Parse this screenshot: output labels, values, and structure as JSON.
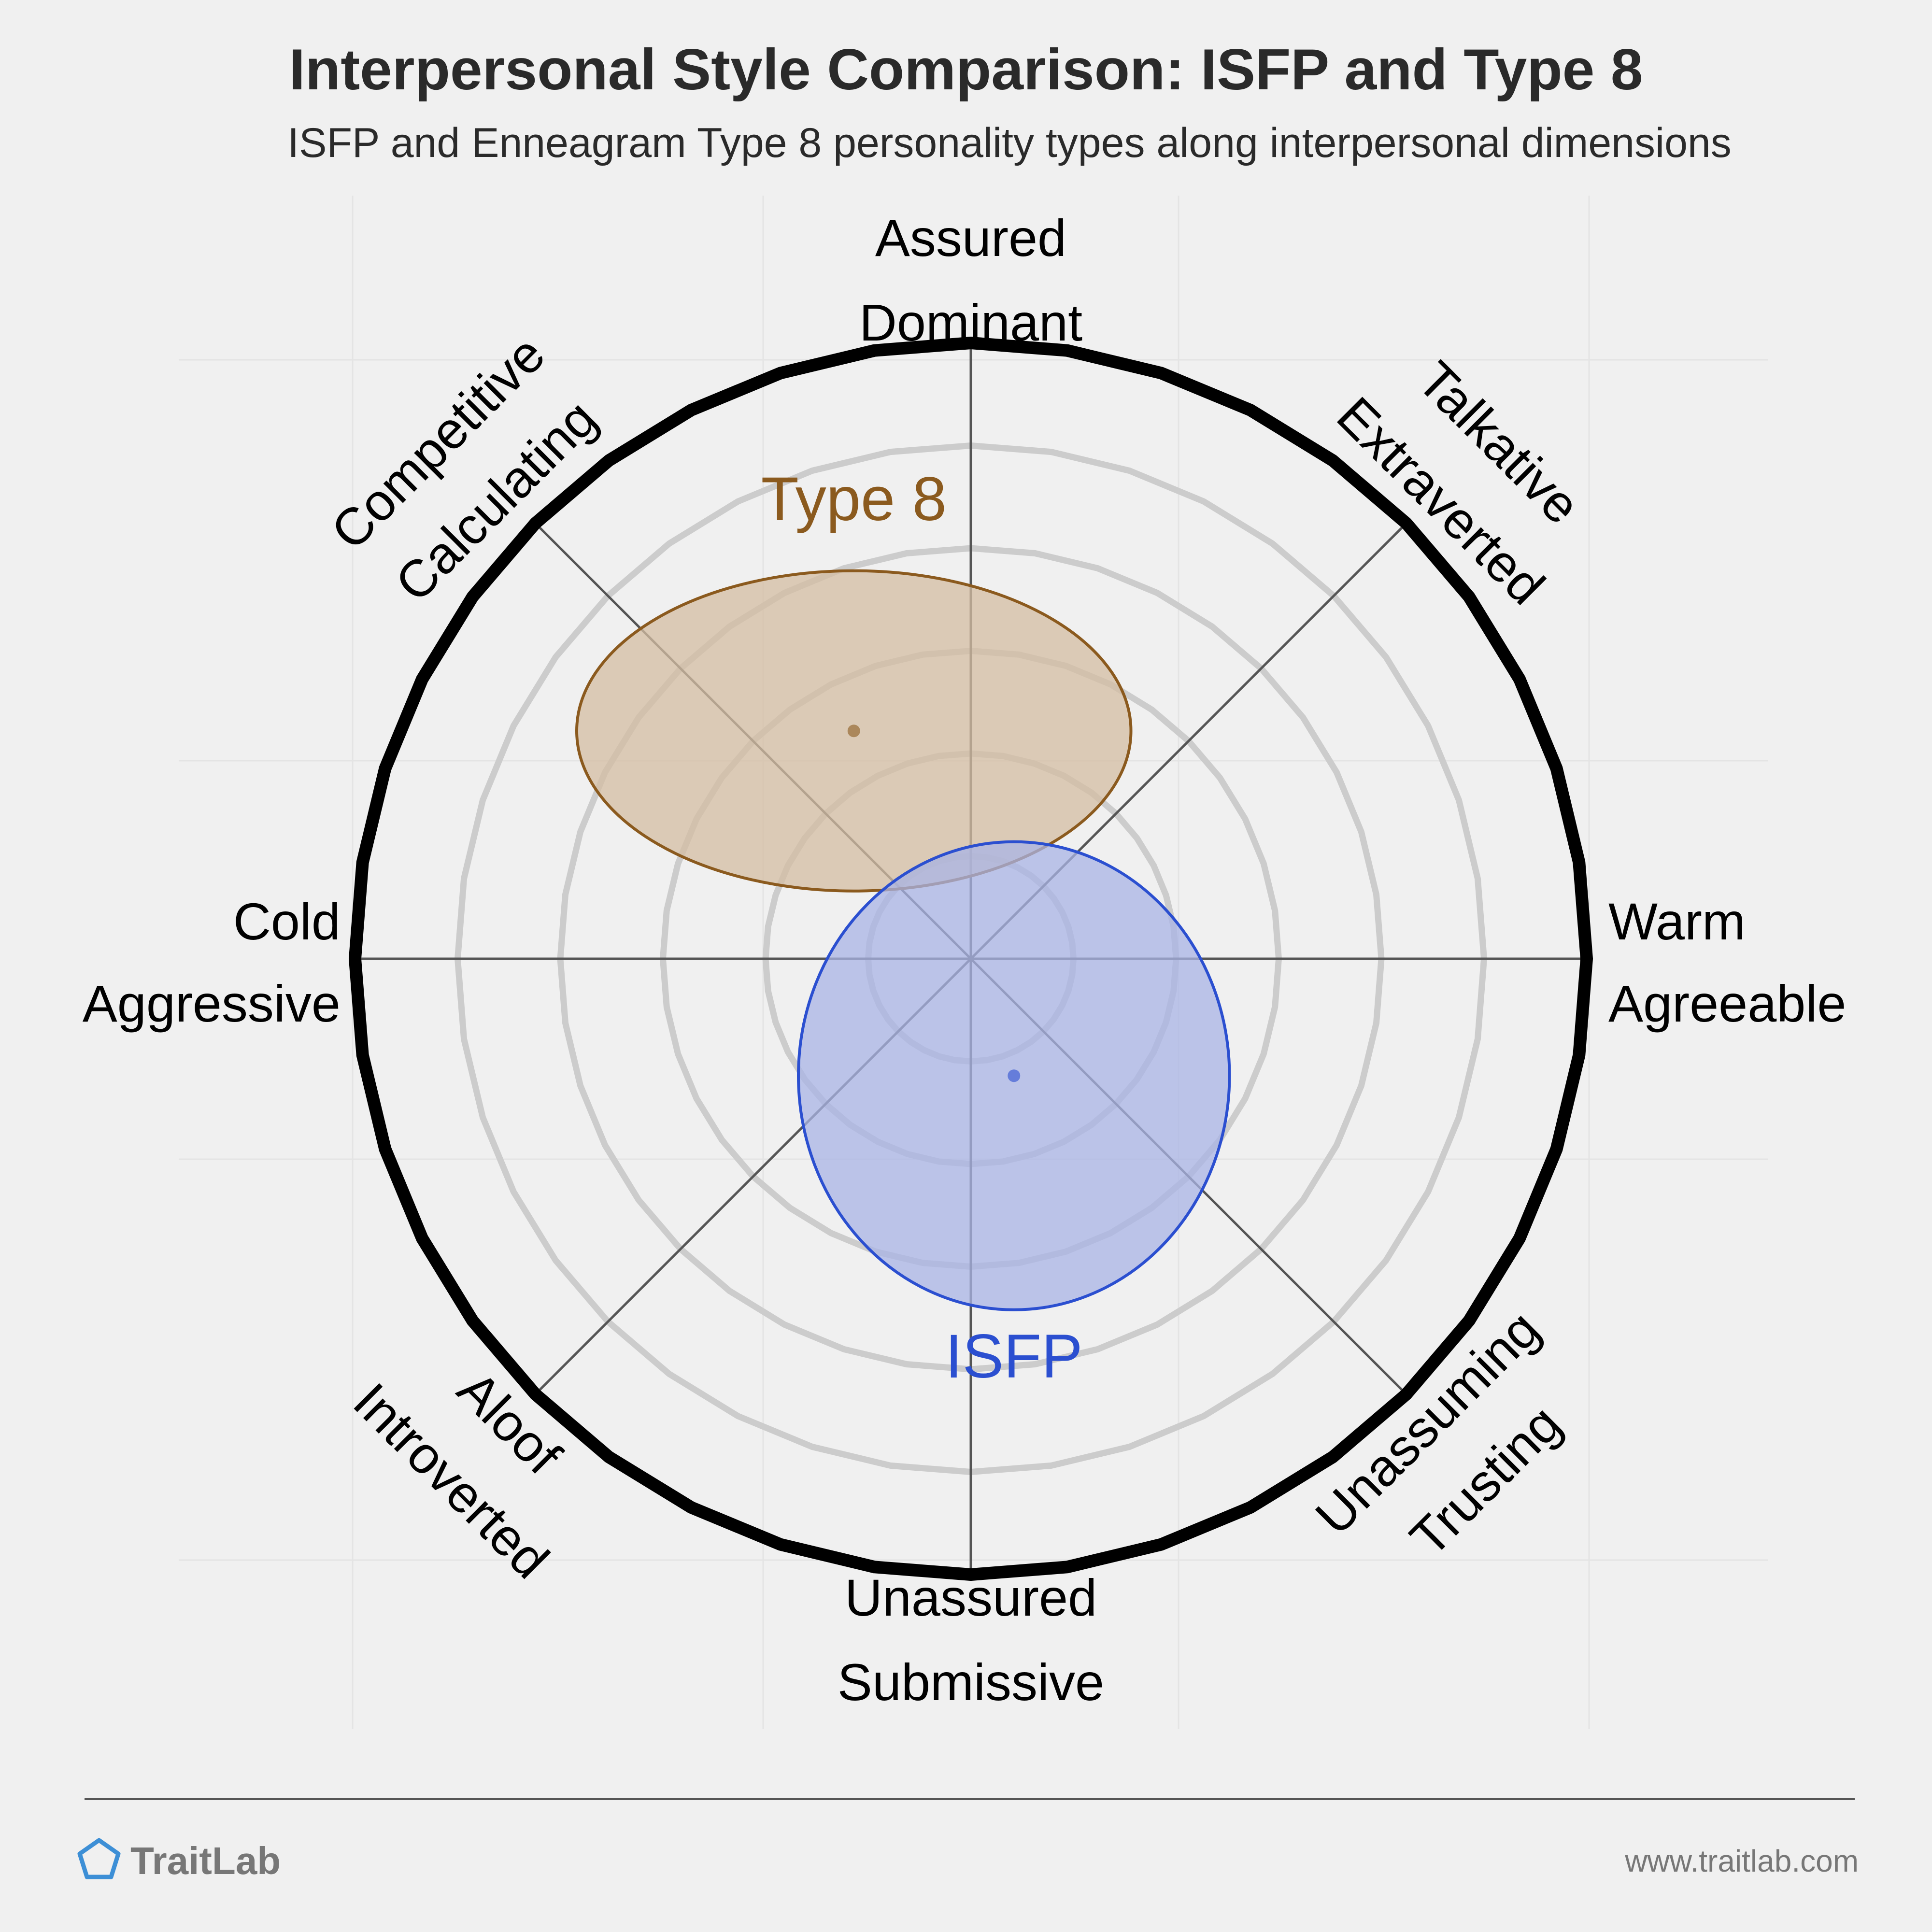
{
  "header": {
    "title": "Interpersonal Style Comparison: ISFP and Type 8",
    "subtitle": "ISFP and Enneagram Type 8 personality types along interpersonal dimensions"
  },
  "chart_data": {
    "type": "scatter",
    "subtype": "interpersonal-circumplex",
    "title": "Interpersonal Style Comparison: ISFP and Type 8",
    "subtitle": "ISFP and Enneagram Type 8 personality types along interpersonal dimensions",
    "x_axis": {
      "negative": [
        "Cold",
        "Aggressive"
      ],
      "positive": [
        "Warm",
        "Agreeable"
      ],
      "range": [
        -1,
        1
      ]
    },
    "y_axis": {
      "negative": [
        "Unassured",
        "Submissive"
      ],
      "positive": [
        "Assured",
        "Dominant"
      ],
      "range": [
        -1,
        1
      ]
    },
    "diagonal_labels": {
      "top_left": [
        "Competitive",
        "Calculating"
      ],
      "top_right": [
        "Talkative",
        "Extraverted"
      ],
      "bottom_left": [
        "Aloof",
        "Introverted"
      ],
      "bottom_right": [
        "Unassuming",
        "Trusting"
      ]
    },
    "rings": 6,
    "grid": true,
    "series": [
      {
        "name": "Type 8",
        "x": -0.19,
        "y": 0.37,
        "spread_x": 0.45,
        "spread_y": 0.26,
        "color": "#8b5a1e",
        "fill": "#d4bea3"
      },
      {
        "name": "ISFP",
        "x": 0.07,
        "y": -0.19,
        "spread_x": 0.35,
        "spread_y": 0.38,
        "color": "#2b4fd0",
        "fill": "#a9b4e6"
      }
    ]
  },
  "footer": {
    "brand": "TraitLab",
    "url": "www.traitlab.com",
    "brand_color": "#3d8fd6"
  }
}
